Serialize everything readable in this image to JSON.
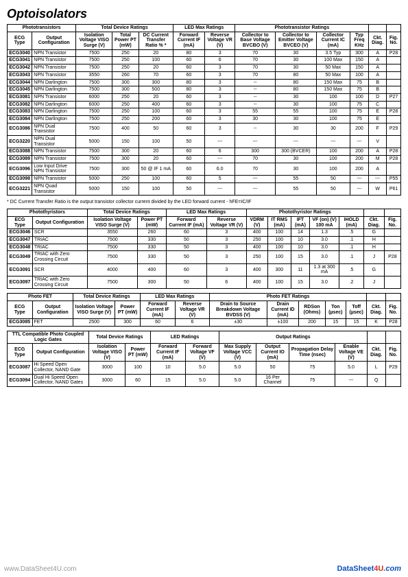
{
  "title": "Optoisolators",
  "note": "* DC Current Transfer Ratio is the output transistor collector current divided by the LED forward current - hFE=IC/IF",
  "watermark": "www.DataSheet4U.com",
  "logo": {
    "a": "Data",
    "b": "Sheet",
    "c": "4U",
    "d": ".com"
  },
  "t1": {
    "groupHeads": [
      "Phototransistors",
      "Total Device Ratings",
      "LED Max Ratings",
      "Phototransistor Ratings",
      "",
      ""
    ],
    "cols": [
      "ECG Type",
      "Output Configuration",
      "Isolation Voltage VISO Surge (V)",
      "Total Power PT (mW)",
      "DC Current Transfer Ratio % *",
      "Forward Current IF (mA)",
      "Reverse Voltage VR (V)",
      "Collector to Base Voltage BVCBO (V)",
      "Collector to Emitter Voltage BVCEO (V)",
      "Collector Current IC (mA)",
      "Typ Freq KHz",
      "Ckt. Diag.",
      "Fig. No."
    ],
    "rows": [
      [
        "ECG3040",
        "NPN Transistor",
        "7500",
        "250",
        "20",
        "80",
        "3",
        "70",
        "30",
        "3.5 Typ",
        "300",
        "A",
        "P28"
      ],
      [
        "ECG3041",
        "NPN Transistor",
        "7500",
        "250",
        "100",
        "60",
        "6",
        "70",
        "30",
        "100 Max",
        "150",
        "A",
        ""
      ],
      [
        "ECG3042",
        "NPN Transistor",
        "7500",
        "250",
        "20",
        "60",
        "3",
        "70",
        "30",
        "50 Max",
        "150",
        "A",
        ""
      ],
      [
        "ECG3043",
        "NPN Transistor",
        "3550",
        "260",
        "70",
        "60",
        "3",
        "70",
        "80",
        "50 Max",
        "100",
        "A",
        ""
      ],
      [
        "ECG3044",
        "NPN Darlington",
        "7500",
        "300",
        "300",
        "80",
        "3",
        "--",
        "80",
        "150 Max",
        "75",
        "B",
        ""
      ],
      [
        "ECG3045",
        "NPN Darlington",
        "7500",
        "300",
        "500",
        "80",
        "3",
        "--",
        "80",
        "150 Max",
        "75",
        "B",
        ""
      ],
      [
        "ECG3081",
        "NPN Transistor",
        "6000",
        "250",
        "20",
        "60",
        "3",
        "--",
        "30",
        "100",
        "100",
        "D",
        "P27"
      ],
      [
        "ECG3082",
        "NPN Darlington",
        "6000",
        "250",
        "400",
        "60",
        "3",
        "--",
        "30",
        "100",
        "75",
        "C",
        ""
      ],
      [
        "ECG3083",
        "NPN Darlington",
        "7500",
        "250",
        "100",
        "60",
        "3",
        "55",
        "55",
        "100",
        "75",
        "E",
        "P28"
      ],
      [
        "ECG3084",
        "NPN Darlington",
        "7500",
        "250",
        "200",
        "60",
        "3",
        "30",
        "30",
        "100",
        "75",
        "E",
        ""
      ],
      [
        "ECG3086",
        "NPN Dual Transistor",
        "7500",
        "400",
        "50",
        "60",
        "3",
        "--",
        "30",
        "30",
        "200",
        "F",
        "P29"
      ],
      [
        "ECG3220",
        "NPN Dual Transistor",
        "5000",
        "150",
        "100",
        "50",
        "---",
        "---",
        "---",
        "---",
        "---",
        "V",
        ""
      ],
      [
        "ECG3088",
        "NPN Transistor",
        "7500",
        "300",
        "20",
        "60",
        "6",
        "300",
        "300 (BVCER)",
        "100",
        "200",
        "A",
        "P28"
      ],
      [
        "ECG3089",
        "NPN Transistor",
        "7500",
        "300",
        "20",
        "60",
        "---",
        "70",
        "30",
        "100",
        "200",
        "M",
        "P28"
      ],
      [
        "ECG3096",
        "Low Input Drive NPN Transistor",
        "7500",
        "300",
        "50 @ IF 1 mA",
        "60",
        "6.0",
        "70",
        "30",
        "100",
        "200",
        "A",
        ""
      ],
      [
        "ECG3098",
        "NPN Transistor",
        "5000",
        "250",
        "100",
        "60",
        "5",
        "---",
        "55",
        "50",
        "---",
        "---",
        "P55"
      ],
      [
        "ECG3221",
        "NPN Quad Transistor",
        "5000",
        "150",
        "100",
        "50",
        "---",
        "---",
        "55",
        "50",
        "---",
        "W",
        "P61"
      ]
    ]
  },
  "t2": {
    "groupHeads": [
      "Photothyristors",
      "Total Device Ratings",
      "LED Max Ratings",
      "Photothyristor Ratings",
      "",
      ""
    ],
    "cols": [
      "ECG Type",
      "Output Configuration",
      "Isolation Voltage VISO Surge (V)",
      "Power PT (mW)",
      "Forward Current IF (mA)",
      "Reverse Voltage VR (V)",
      "VDRM (V)",
      "IT RMS (mA)",
      "IFT (mA)",
      "VF (on) (V) 100 mA",
      "IHOLD (mA)",
      "Ckt. Diag.",
      "Fig. No."
    ],
    "rows": [
      [
        "ECG3046",
        "SCR",
        "3550",
        "260",
        "60",
        "3",
        "400",
        "100",
        "14",
        "1.3",
        ".5",
        "G",
        ""
      ],
      [
        "ECG3047",
        "TRIAC",
        "7500",
        "330",
        "50",
        "3",
        "250",
        "100",
        "10",
        "3.0",
        ".1",
        "H",
        ""
      ],
      [
        "ECG3048",
        "TRIAC",
        "7500",
        "330",
        "50",
        "3",
        "400",
        "100",
        "10",
        "3.0",
        ".1",
        "H",
        ""
      ],
      [
        "ECG3049",
        "TRIAC with Zero Crossing Circuit",
        "7500",
        "330",
        "50",
        "3",
        "250",
        "100",
        "15",
        "3.0",
        ".1",
        "J",
        "P28"
      ],
      [
        "ECG3091",
        "SCR",
        "4000",
        "400",
        "60",
        "3",
        "400",
        "300",
        "11",
        "1.3 at 300 mA",
        ".5",
        "G",
        ""
      ],
      [
        "ECG3097",
        "TRIAC with Zero Crossing Circuit",
        "7500",
        "300",
        "50",
        "6",
        "400",
        "100",
        "15",
        "3.0",
        ".2",
        "J",
        ""
      ]
    ]
  },
  "t3": {
    "groupHeads": [
      "Photo FET",
      "Total Device Ratings",
      "LED Max Ratings",
      "Photo FET Ratings",
      "",
      ""
    ],
    "cols": [
      "ECG Type",
      "Output Configuration",
      "Isolation Voltage VISO Surge (V)",
      "Power PT (mW)",
      "Forward Current IF (mA)",
      "Reverse Voltage VR (V)",
      "Drain to Source Breakdown Voltage BVDSS (V)",
      "Drain Current ID (mA)",
      "RDSon (Ohms)",
      "Ton (µsec)",
      "Toff (µsec)",
      "Ckt. Diag.",
      "Fig. No."
    ],
    "rows": [
      [
        "ECG3085",
        "FET",
        "2500",
        "300",
        "60",
        "6",
        "±30",
        "±100",
        "200",
        "15",
        "15",
        "K",
        "P28"
      ]
    ]
  },
  "t4": {
    "groupHeads": [
      "TTL Compatible Photo Coupled Logic Gates",
      "Total Device Ratings",
      "LED Ratings",
      "Output Ratings",
      "",
      ""
    ],
    "cols": [
      "ECG Type",
      "Output Configuration",
      "Isolation Voltage VISO (V)",
      "Power PT (mW)",
      "Forward Current IF (mA)",
      "Forward Voltage VF (V)",
      "Max Supply Voltage VCC (V)",
      "Output Current IO (mA)",
      "Propagation Delay Time (nsec)",
      "Enable Voltage VE (V)",
      "Ckt. Diag.",
      "Fig. No."
    ],
    "rows": [
      [
        "ECG3087",
        "Hi Speed Open Collector, NAND Gate",
        "3000",
        "100",
        "10",
        "5.0",
        "5.0",
        "50",
        "75",
        "5.0",
        "L",
        "P29"
      ],
      [
        "ECG3094",
        "Dual Hi Speed Open Collector, NAND Gates",
        "3000",
        "60",
        "15",
        "5.0",
        "5.0",
        "16 Per Channel",
        "75",
        "---",
        "Q",
        ""
      ]
    ]
  }
}
